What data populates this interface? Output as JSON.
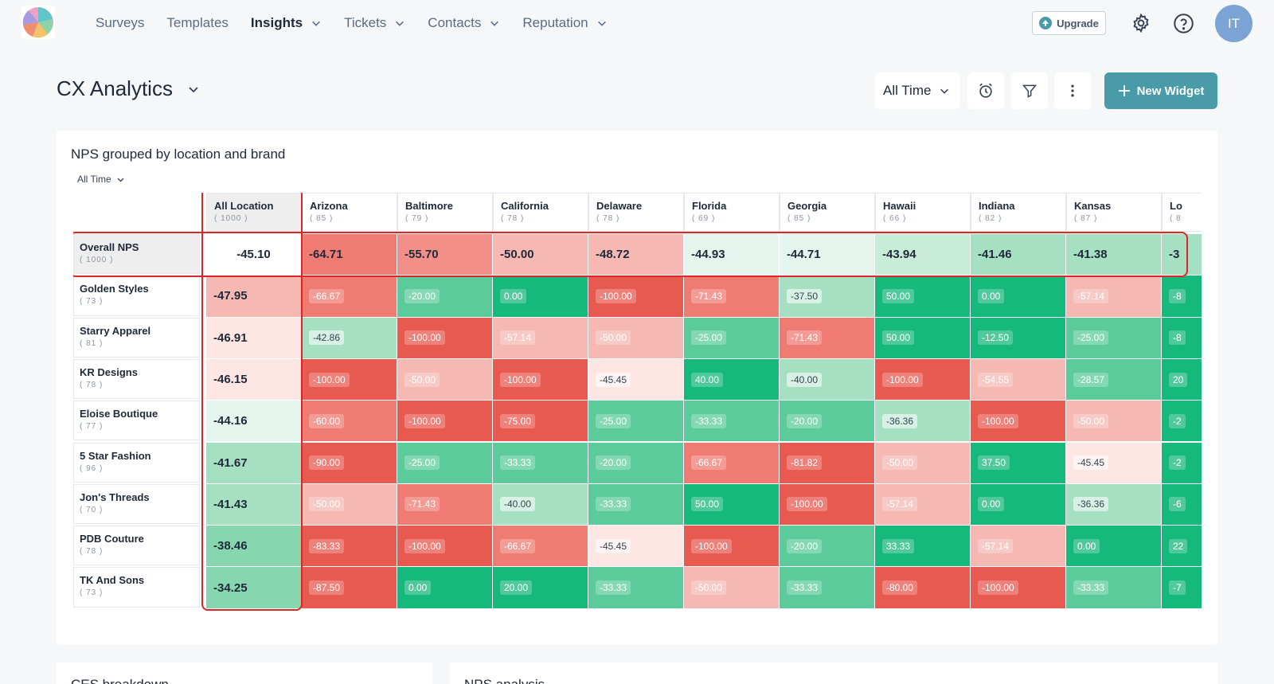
{
  "nav": {
    "items": [
      {
        "label": "Surveys",
        "active": false,
        "dropdown": false
      },
      {
        "label": "Templates",
        "active": false,
        "dropdown": false
      },
      {
        "label": "Insights",
        "active": true,
        "dropdown": true
      },
      {
        "label": "Tickets",
        "active": false,
        "dropdown": true
      },
      {
        "label": "Contacts",
        "active": false,
        "dropdown": true
      },
      {
        "label": "Reputation",
        "active": false,
        "dropdown": true
      }
    ],
    "upgrade_label": "Upgrade",
    "avatar_initials": "IT"
  },
  "header": {
    "title": "CX Analytics",
    "time_filter": "All Time",
    "new_widget_label": "New Widget"
  },
  "widget": {
    "title": "NPS grouped by location and brand",
    "time_filter": "All Time",
    "columns": [
      {
        "name": "All Location",
        "count": "( 1000 )"
      },
      {
        "name": "Arizona",
        "count": "( 85 )"
      },
      {
        "name": "Baltimore",
        "count": "( 79 )"
      },
      {
        "name": "California",
        "count": "( 78 )"
      },
      {
        "name": "Delaware",
        "count": "( 78 )"
      },
      {
        "name": "Florida",
        "count": "( 69 )"
      },
      {
        "name": "Georgia",
        "count": "( 85 )"
      },
      {
        "name": "Hawaii",
        "count": "( 66 )"
      },
      {
        "name": "Indiana",
        "count": "( 82 )"
      },
      {
        "name": "Kansas",
        "count": "( 87 )"
      },
      {
        "name": "Lo",
        "count": "( 8"
      }
    ],
    "rows": [
      {
        "name": "Overall NPS",
        "count": "( 1000 )",
        "values": [
          "-45.10",
          "-64.71",
          "-55.70",
          "-50.00",
          "-48.72",
          "-44.93",
          "-44.71",
          "-43.94",
          "-41.46",
          "-41.38",
          "-3"
        ]
      },
      {
        "name": "Golden Styles",
        "count": "( 73 )",
        "values": [
          "-47.95",
          "-66.67",
          "-20.00",
          "0.00",
          "-100.00",
          "-71.43",
          "-37.50",
          "50.00",
          "0.00",
          "-57.14",
          "-8"
        ]
      },
      {
        "name": "Starry Apparel",
        "count": "( 81 )",
        "values": [
          "-46.91",
          "-42.86",
          "-100.00",
          "-57.14",
          "-50.00",
          "-25.00",
          "-71.43",
          "50.00",
          "-12.50",
          "-25.00",
          "-8"
        ]
      },
      {
        "name": "KR Designs",
        "count": "( 78 )",
        "values": [
          "-46.15",
          "-100.00",
          "-50.00",
          "-100.00",
          "-45.45",
          "40.00",
          "-40.00",
          "-100.00",
          "-54.55",
          "-28.57",
          "20"
        ]
      },
      {
        "name": "Eloise Boutique",
        "count": "( 77 )",
        "values": [
          "-44.16",
          "-60.00",
          "-100.00",
          "-75.00",
          "-25.00",
          "-33.33",
          "-20.00",
          "-36.36",
          "-100.00",
          "-50.00",
          "-2"
        ]
      },
      {
        "name": "5 Star Fashion",
        "count": "( 96 )",
        "values": [
          "-41.67",
          "-90.00",
          "-25.00",
          "-33.33",
          "-20.00",
          "-66.67",
          "-81.82",
          "-50.00",
          "37.50",
          "-45.45",
          "-2"
        ]
      },
      {
        "name": "Jon's Threads",
        "count": "( 70 )",
        "values": [
          "-41.43",
          "-50.00",
          "-71.43",
          "-40.00",
          "-33.33",
          "50.00",
          "-100.00",
          "-57.14",
          "0.00",
          "-36.36",
          "-6"
        ]
      },
      {
        "name": "PDB Couture",
        "count": "( 78 )",
        "values": [
          "-38.46",
          "-83.33",
          "-100.00",
          "-66.67",
          "-45.45",
          "-100.00",
          "-20.00",
          "33.33",
          "-57.14",
          "0.00",
          "22"
        ]
      },
      {
        "name": "TK And Sons",
        "count": "( 73 )",
        "values": [
          "-34.25",
          "-87.50",
          "0.00",
          "20.00",
          "-33.33",
          "-50.00",
          "-33.33",
          "-80.00",
          "-100.00",
          "-33.33",
          "-7"
        ]
      }
    ],
    "colors": {
      "deep_red": "#e8594f",
      "red": "#ef7b73",
      "light_red": "#f6b8b3",
      "pale_red": "#fde6e4",
      "pale_green": "#e3f5ec",
      "light_green": "#a6e0c3",
      "green": "#5ccb9b",
      "deep_green": "#16b97c",
      "highlight": "#dc2626",
      "accent": "#4a9ba8"
    }
  },
  "bottom": {
    "left_title": "CES breakdown",
    "right_title": "NPS analysis"
  }
}
